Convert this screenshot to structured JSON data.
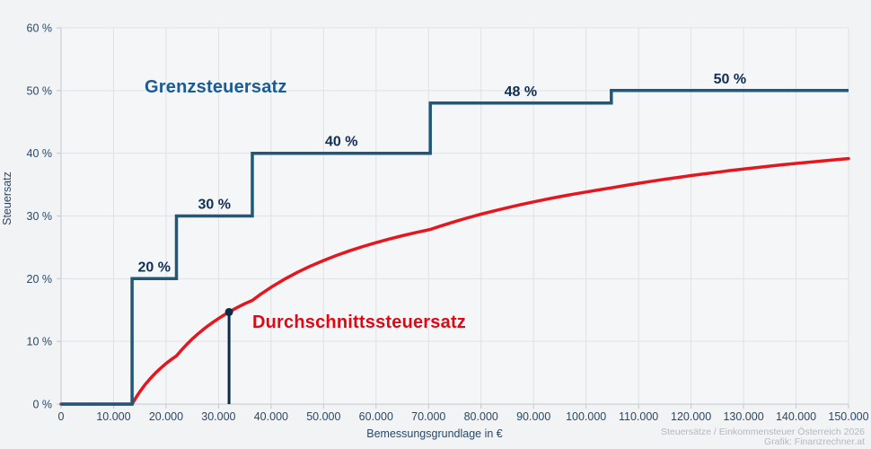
{
  "chart_data": {
    "type": "line",
    "title": "",
    "xlabel": "Bemessungsgrundlage in €",
    "ylabel": "Steuersatz",
    "xlim": [
      0,
      150000
    ],
    "ylim": [
      0,
      60
    ],
    "grid": true,
    "legend_position": "inline-labels",
    "x_ticks": [
      {
        "value": 0,
        "label": "0"
      },
      {
        "value": 10000,
        "label": "10.000"
      },
      {
        "value": 20000,
        "label": "20.000"
      },
      {
        "value": 30000,
        "label": "30.000"
      },
      {
        "value": 40000,
        "label": "40.000"
      },
      {
        "value": 50000,
        "label": "50.000"
      },
      {
        "value": 60000,
        "label": "60.000"
      },
      {
        "value": 70000,
        "label": "70.000"
      },
      {
        "value": 80000,
        "label": "80.000"
      },
      {
        "value": 90000,
        "label": "90.000"
      },
      {
        "value": 100000,
        "label": "100.000"
      },
      {
        "value": 110000,
        "label": "110.000"
      },
      {
        "value": 120000,
        "label": "120.000"
      },
      {
        "value": 130000,
        "label": "130.000"
      },
      {
        "value": 140000,
        "label": "140.000"
      },
      {
        "value": 150000,
        "label": "150.000"
      }
    ],
    "y_ticks": [
      {
        "value": 0,
        "label": "0 %"
      },
      {
        "value": 10,
        "label": "10 %"
      },
      {
        "value": 20,
        "label": "20 %"
      },
      {
        "value": 30,
        "label": "30 %"
      },
      {
        "value": 40,
        "label": "40 %"
      },
      {
        "value": 50,
        "label": "50 %"
      },
      {
        "value": 60,
        "label": "60 %"
      }
    ],
    "series": [
      {
        "name": "Grenzsteuersatz",
        "type": "step",
        "brackets": [
          {
            "from": 0,
            "to": 13528,
            "rate": 0
          },
          {
            "from": 13528,
            "to": 21981,
            "rate": 20
          },
          {
            "from": 21981,
            "to": 36439,
            "rate": 30
          },
          {
            "from": 36439,
            "to": 70329,
            "rate": 40
          },
          {
            "from": 70329,
            "to": 104805,
            "rate": 48
          },
          {
            "from": 104805,
            "to": 150000,
            "rate": 50
          }
        ],
        "step_labels": [
          {
            "text": "20 %",
            "x": 17750,
            "y": 20
          },
          {
            "text": "30 %",
            "x": 29200,
            "y": 30
          },
          {
            "text": "40 %",
            "x": 53400,
            "y": 40
          },
          {
            "text": "48 %",
            "x": 87550,
            "y": 48
          },
          {
            "text": "50 %",
            "x": 127400,
            "y": 50
          }
        ]
      },
      {
        "name": "Durchschnittssteuersatz",
        "type": "curve",
        "points": [
          [
            0,
            0
          ],
          [
            13528,
            0
          ],
          [
            14000,
            0.67
          ],
          [
            14500,
            1.34
          ],
          [
            15000,
            1.96
          ],
          [
            15500,
            2.54
          ],
          [
            16000,
            3.09
          ],
          [
            17000,
            4.08
          ],
          [
            18000,
            4.97
          ],
          [
            19000,
            5.76
          ],
          [
            20000,
            6.47
          ],
          [
            21000,
            7.12
          ],
          [
            21981,
            7.69
          ],
          [
            23000,
            8.68
          ],
          [
            24000,
            9.57
          ],
          [
            25000,
            10.39
          ],
          [
            26000,
            11.14
          ],
          [
            27000,
            11.84
          ],
          [
            28000,
            12.49
          ],
          [
            29000,
            13.09
          ],
          [
            30000,
            13.65
          ],
          [
            31000,
            14.18
          ],
          [
            32000,
            14.68
          ],
          [
            33000,
            15.15
          ],
          [
            34000,
            15.59
          ],
          [
            35000,
            16.01
          ],
          [
            36439,
            16.54
          ],
          [
            38000,
            17.51
          ],
          [
            40000,
            18.63
          ],
          [
            42500,
            19.89
          ],
          [
            45000,
            21.01
          ],
          [
            47500,
            22.01
          ],
          [
            50000,
            22.9
          ],
          [
            52500,
            23.72
          ],
          [
            55000,
            24.46
          ],
          [
            57500,
            25.13
          ],
          [
            60000,
            25.75
          ],
          [
            62500,
            26.32
          ],
          [
            65000,
            26.85
          ],
          [
            67500,
            27.34
          ],
          [
            70329,
            27.85
          ],
          [
            72500,
            28.45
          ],
          [
            75000,
            29.1
          ],
          [
            77500,
            29.71
          ],
          [
            80000,
            30.28
          ],
          [
            82500,
            30.82
          ],
          [
            85000,
            31.32
          ],
          [
            87500,
            31.8
          ],
          [
            90000,
            32.25
          ],
          [
            92500,
            32.68
          ],
          [
            95000,
            33.08
          ],
          [
            97500,
            33.46
          ],
          [
            100000,
            33.83
          ],
          [
            102500,
            34.17
          ],
          [
            104805,
            34.48
          ],
          [
            107500,
            34.87
          ],
          [
            110000,
            35.21
          ],
          [
            112500,
            35.54
          ],
          [
            115000,
            35.85
          ],
          [
            117500,
            36.15
          ],
          [
            120000,
            36.44
          ],
          [
            122500,
            36.72
          ],
          [
            125000,
            36.98
          ],
          [
            127500,
            37.24
          ],
          [
            130000,
            37.48
          ],
          [
            132500,
            37.72
          ],
          [
            135000,
            37.95
          ],
          [
            137500,
            38.17
          ],
          [
            140000,
            38.38
          ],
          [
            142500,
            38.58
          ],
          [
            145000,
            38.78
          ],
          [
            147500,
            38.97
          ],
          [
            150000,
            39.15
          ]
        ],
        "marker": {
          "x": 32000,
          "y": 14.68
        }
      }
    ],
    "colors": {
      "page_bg": "#f2f3f5",
      "plot_bg": "#f5f6f8",
      "grid": "#dfe1e5",
      "axis": "#c3c7cd",
      "tick_text": "#2a4866",
      "step_line": "#20587a",
      "step_label": "#0f2f54",
      "curve": "#e6161f",
      "marker": "#0c2b49",
      "grenz_label": "#1b5a94",
      "durchschnitt_label": "#e30613",
      "caption": "#b4b8bf"
    }
  },
  "caption": {
    "line1": "Steuersätze / Einkommensteuer Österreich 2026",
    "line2": "Grafik: Finanzrechner.at"
  }
}
